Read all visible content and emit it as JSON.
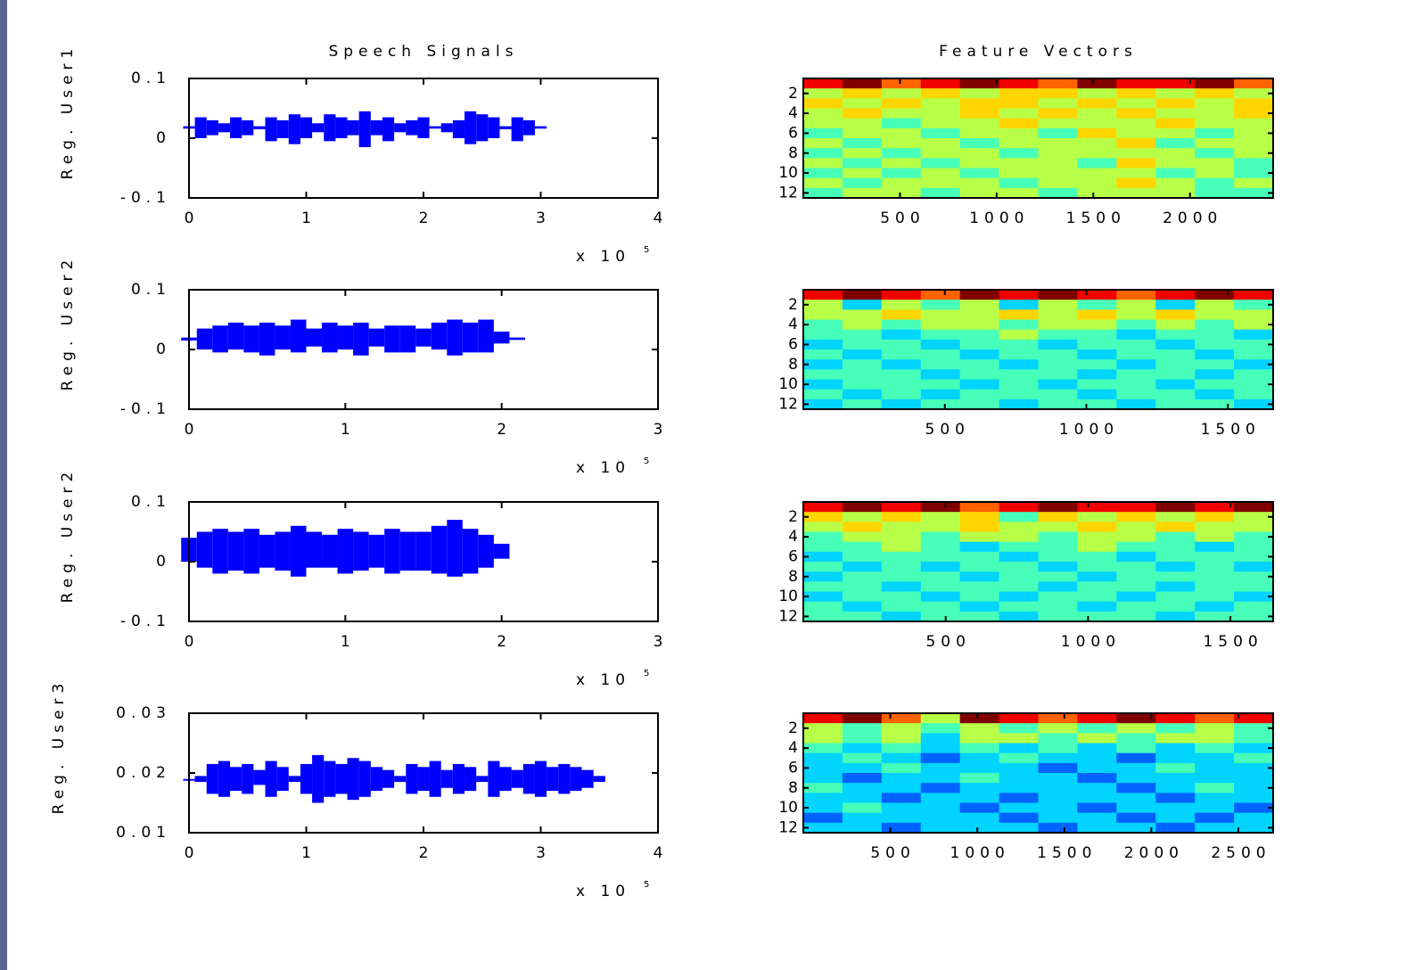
{
  "chart_data": [
    {
      "type": "range",
      "title": "Speech Signals",
      "ylabel": "Reg. User1",
      "xlabel_base": "x 10",
      "xlabel_exponent": "5",
      "color": "#0000ff",
      "xlim": [
        0,
        4
      ],
      "xticks": [
        0,
        1,
        2,
        3,
        4
      ],
      "ylim": [
        -0.1,
        0.1
      ],
      "yticks": [
        -0.1,
        0,
        0.1
      ],
      "x": [
        0,
        0.1,
        0.2,
        0.3,
        0.4,
        0.5,
        0.6,
        0.7,
        0.8,
        0.9,
        1,
        1.1,
        1.2,
        1.3,
        1.4,
        1.5,
        1.6,
        1.7,
        1.8,
        1.9,
        2,
        2.1,
        2.2,
        2.3,
        2.4,
        2.5,
        2.6,
        2.7,
        2.8,
        2.9,
        3
      ],
      "upper": [
        0.02,
        0.035,
        0.03,
        0.025,
        0.035,
        0.03,
        0.02,
        0.035,
        0.03,
        0.04,
        0.035,
        0.025,
        0.04,
        0.035,
        0.03,
        0.045,
        0.03,
        0.035,
        0.025,
        0.03,
        0.035,
        0.02,
        0.025,
        0.03,
        0.045,
        0.04,
        0.035,
        0.02,
        0.035,
        0.03,
        0.02
      ],
      "lower": [
        0.016,
        0,
        0.005,
        0.01,
        0,
        0.005,
        0.015,
        -0.005,
        0,
        -0.01,
        0,
        0.01,
        -0.005,
        0,
        0.005,
        -0.015,
        0.005,
        -0.005,
        0.01,
        0.005,
        0,
        0.016,
        0.01,
        0,
        -0.01,
        -0.005,
        0,
        0.015,
        -0.005,
        0.005,
        0.016
      ]
    },
    {
      "type": "heatmap",
      "title": "Feature Vectors",
      "colormap": "jet",
      "clim": [
        0,
        9
      ],
      "xlim": [
        0,
        2430
      ],
      "xticks": [
        500,
        1000,
        1500,
        2000
      ],
      "ylim": [
        0.5,
        12.5
      ],
      "yticks": [
        2,
        4,
        6,
        8,
        10,
        12
      ],
      "yreverse": true,
      "values": [
        [
          8,
          9,
          7,
          8,
          9,
          8,
          7,
          9,
          8,
          8,
          9,
          7
        ],
        [
          5,
          6,
          5,
          6,
          5,
          6,
          6,
          5,
          6,
          5,
          6,
          5
        ],
        [
          6,
          5,
          6,
          5,
          6,
          6,
          5,
          6,
          5,
          6,
          5,
          6
        ],
        [
          5,
          6,
          5,
          5,
          6,
          5,
          6,
          5,
          6,
          5,
          5,
          6
        ],
        [
          5,
          5,
          4,
          5,
          5,
          6,
          5,
          5,
          5,
          6,
          5,
          5
        ],
        [
          4,
          5,
          5,
          4,
          5,
          5,
          4,
          6,
          5,
          5,
          4,
          5
        ],
        [
          5,
          4,
          5,
          5,
          4,
          5,
          5,
          5,
          6,
          4,
          5,
          5
        ],
        [
          4,
          5,
          4,
          5,
          5,
          4,
          5,
          5,
          5,
          5,
          4,
          5
        ],
        [
          5,
          4,
          5,
          4,
          5,
          5,
          5,
          4,
          6,
          5,
          5,
          4
        ],
        [
          4,
          5,
          4,
          5,
          4,
          5,
          5,
          5,
          5,
          4,
          5,
          4
        ],
        [
          5,
          4,
          5,
          5,
          5,
          4,
          5,
          5,
          6,
          5,
          4,
          5
        ],
        [
          4,
          5,
          5,
          4,
          5,
          5,
          4,
          5,
          5,
          5,
          4,
          4
        ]
      ]
    },
    {
      "type": "range",
      "ylabel": "Reg. User2",
      "xlabel_base": "x 10",
      "xlabel_exponent": "5",
      "color": "#0000ff",
      "xlim": [
        0,
        3
      ],
      "xticks": [
        0,
        1,
        2,
        3
      ],
      "ylim": [
        -0.1,
        0.1
      ],
      "yticks": [
        -0.1,
        0,
        0.1
      ],
      "x": [
        0,
        0.1,
        0.2,
        0.3,
        0.4,
        0.5,
        0.6,
        0.7,
        0.8,
        0.9,
        1,
        1.1,
        1.2,
        1.3,
        1.4,
        1.5,
        1.6,
        1.7,
        1.8,
        1.9,
        2,
        2.1
      ],
      "upper": [
        0.02,
        0.035,
        0.04,
        0.045,
        0.04,
        0.045,
        0.04,
        0.05,
        0.035,
        0.045,
        0.04,
        0.045,
        0.035,
        0.04,
        0.04,
        0.035,
        0.045,
        0.05,
        0.045,
        0.05,
        0.03,
        0.02
      ],
      "lower": [
        0.015,
        0,
        -0.005,
        0,
        -0.005,
        -0.01,
        0,
        -0.005,
        0.005,
        -0.005,
        0,
        -0.01,
        0.005,
        -0.005,
        -0.005,
        0.005,
        0,
        -0.01,
        -0.005,
        -0.005,
        0.01,
        0.016
      ]
    },
    {
      "type": "heatmap",
      "colormap": "jet",
      "clim": [
        0,
        9
      ],
      "xlim": [
        0,
        1660
      ],
      "xticks": [
        500,
        1000,
        1500
      ],
      "ylim": [
        0.5,
        12.5
      ],
      "yticks": [
        2,
        4,
        6,
        8,
        10,
        12
      ],
      "yreverse": true,
      "values": [
        [
          8,
          9,
          8,
          7,
          9,
          8,
          9,
          8,
          7,
          8,
          9,
          8
        ],
        [
          5,
          3,
          5,
          4,
          5,
          3,
          5,
          4,
          5,
          3,
          5,
          4
        ],
        [
          5,
          5,
          6,
          5,
          5,
          6,
          5,
          6,
          5,
          6,
          5,
          5
        ],
        [
          4,
          5,
          4,
          5,
          5,
          4,
          5,
          5,
          4,
          5,
          4,
          5
        ],
        [
          4,
          4,
          3,
          4,
          4,
          5,
          4,
          4,
          3,
          4,
          4,
          3
        ],
        [
          3,
          4,
          4,
          3,
          4,
          4,
          3,
          4,
          4,
          3,
          4,
          4
        ],
        [
          4,
          3,
          4,
          4,
          3,
          4,
          4,
          3,
          4,
          4,
          3,
          4
        ],
        [
          3,
          4,
          3,
          4,
          4,
          3,
          4,
          4,
          3,
          4,
          4,
          3
        ],
        [
          4,
          4,
          4,
          3,
          4,
          4,
          4,
          3,
          4,
          4,
          3,
          4
        ],
        [
          3,
          4,
          4,
          4,
          3,
          4,
          3,
          4,
          4,
          3,
          4,
          4
        ],
        [
          4,
          3,
          4,
          3,
          4,
          4,
          4,
          3,
          4,
          4,
          3,
          4
        ],
        [
          3,
          4,
          3,
          4,
          4,
          3,
          4,
          4,
          3,
          4,
          4,
          3
        ]
      ]
    },
    {
      "type": "range",
      "ylabel": "Reg. User2",
      "xlabel_base": "x 10",
      "xlabel_exponent": "5",
      "color": "#0000ff",
      "xlim": [
        0,
        3
      ],
      "xticks": [
        0,
        1,
        2,
        3
      ],
      "ylim": [
        -0.1,
        0.1
      ],
      "yticks": [
        -0.1,
        0,
        0.1
      ],
      "x": [
        0,
        0.1,
        0.2,
        0.3,
        0.4,
        0.5,
        0.6,
        0.7,
        0.8,
        0.9,
        1,
        1.1,
        1.2,
        1.3,
        1.4,
        1.5,
        1.6,
        1.7,
        1.8,
        1.9,
        2
      ],
      "upper": [
        0.04,
        0.05,
        0.055,
        0.05,
        0.055,
        0.045,
        0.05,
        0.06,
        0.05,
        0.045,
        0.055,
        0.05,
        0.045,
        0.055,
        0.05,
        0.05,
        0.06,
        0.07,
        0.055,
        0.045,
        0.03
      ],
      "lower": [
        0,
        -0.01,
        -0.02,
        -0.015,
        -0.02,
        -0.01,
        -0.015,
        -0.025,
        -0.01,
        -0.01,
        -0.02,
        -0.015,
        -0.01,
        -0.02,
        -0.015,
        -0.015,
        -0.02,
        -0.025,
        -0.02,
        -0.01,
        0.005
      ]
    },
    {
      "type": "heatmap",
      "colormap": "jet",
      "clim": [
        0,
        9
      ],
      "xlim": [
        0,
        1650
      ],
      "xticks": [
        500,
        1000,
        1500
      ],
      "ylim": [
        0.5,
        12.5
      ],
      "yticks": [
        2,
        4,
        6,
        8,
        10,
        12
      ],
      "yreverse": true,
      "values": [
        [
          8,
          9,
          8,
          9,
          7,
          8,
          9,
          8,
          8,
          9,
          8,
          9
        ],
        [
          6,
          5,
          6,
          5,
          6,
          4,
          6,
          5,
          6,
          5,
          6,
          5
        ],
        [
          5,
          6,
          5,
          5,
          6,
          5,
          5,
          6,
          5,
          6,
          5,
          5
        ],
        [
          4,
          5,
          5,
          4,
          5,
          5,
          4,
          5,
          5,
          4,
          5,
          4
        ],
        [
          4,
          4,
          5,
          4,
          3,
          4,
          4,
          5,
          4,
          4,
          3,
          4
        ],
        [
          3,
          4,
          4,
          4,
          4,
          3,
          4,
          4,
          3,
          4,
          4,
          4
        ],
        [
          4,
          3,
          4,
          3,
          4,
          4,
          3,
          4,
          4,
          3,
          4,
          3
        ],
        [
          3,
          4,
          4,
          4,
          3,
          4,
          4,
          3,
          4,
          4,
          4,
          4
        ],
        [
          4,
          4,
          3,
          4,
          4,
          4,
          3,
          4,
          4,
          3,
          4,
          4
        ],
        [
          3,
          4,
          4,
          3,
          4,
          3,
          4,
          4,
          3,
          4,
          4,
          3
        ],
        [
          4,
          3,
          4,
          4,
          3,
          4,
          4,
          3,
          4,
          4,
          3,
          4
        ],
        [
          4,
          4,
          3,
          4,
          4,
          3,
          4,
          4,
          4,
          3,
          4,
          4
        ]
      ]
    },
    {
      "type": "range",
      "ylabel": "Reg. User3",
      "xlabel_base": "x 10",
      "xlabel_exponent": "5",
      "color": "#0000ff",
      "xlim": [
        0,
        4
      ],
      "xticks": [
        0,
        1,
        2,
        3,
        4
      ],
      "ylim": [
        0.01,
        0.03
      ],
      "yticks": [
        0.01,
        0.02,
        0.03
      ],
      "x": [
        0,
        0.1,
        0.2,
        0.3,
        0.4,
        0.5,
        0.6,
        0.7,
        0.8,
        0.9,
        1,
        1.1,
        1.2,
        1.3,
        1.4,
        1.5,
        1.6,
        1.7,
        1.8,
        1.9,
        2,
        2.1,
        2.2,
        2.3,
        2.4,
        2.5,
        2.6,
        2.7,
        2.8,
        2.9,
        3,
        3.1,
        3.2,
        3.3,
        3.4,
        3.5
      ],
      "upper": [
        0.019,
        0.0195,
        0.0215,
        0.022,
        0.021,
        0.0215,
        0.0205,
        0.022,
        0.021,
        0.0195,
        0.0215,
        0.023,
        0.022,
        0.0215,
        0.0225,
        0.022,
        0.021,
        0.0205,
        0.0195,
        0.0215,
        0.021,
        0.022,
        0.0205,
        0.0215,
        0.021,
        0.0195,
        0.022,
        0.021,
        0.0205,
        0.0215,
        0.022,
        0.021,
        0.0215,
        0.021,
        0.0205,
        0.0195
      ],
      "lower": [
        0.019,
        0.0185,
        0.0165,
        0.016,
        0.017,
        0.0165,
        0.018,
        0.016,
        0.017,
        0.0185,
        0.0165,
        0.015,
        0.016,
        0.0165,
        0.0155,
        0.016,
        0.017,
        0.0175,
        0.0185,
        0.0165,
        0.017,
        0.016,
        0.0175,
        0.0165,
        0.017,
        0.0185,
        0.016,
        0.017,
        0.0175,
        0.0165,
        0.016,
        0.017,
        0.0165,
        0.017,
        0.0175,
        0.0185
      ]
    },
    {
      "type": "heatmap",
      "colormap": "jet",
      "clim": [
        0,
        9
      ],
      "xlim": [
        0,
        2700
      ],
      "xticks": [
        500,
        1000,
        1500,
        2000,
        2500
      ],
      "ylim": [
        0.5,
        12.5
      ],
      "yticks": [
        2,
        4,
        6,
        8,
        10,
        12
      ],
      "yreverse": true,
      "values": [
        [
          8,
          9,
          7,
          5,
          9,
          8,
          7,
          8,
          9,
          8,
          7,
          8
        ],
        [
          5,
          4,
          5,
          4,
          5,
          4,
          5,
          4,
          5,
          4,
          5,
          4
        ],
        [
          5,
          4,
          5,
          3,
          5,
          5,
          4,
          5,
          4,
          5,
          5,
          4
        ],
        [
          4,
          3,
          4,
          3,
          4,
          3,
          4,
          3,
          4,
          3,
          4,
          3
        ],
        [
          3,
          4,
          3,
          2,
          3,
          4,
          3,
          3,
          2,
          3,
          3,
          4
        ],
        [
          3,
          3,
          4,
          3,
          3,
          3,
          2,
          3,
          3,
          4,
          3,
          3
        ],
        [
          3,
          2,
          3,
          3,
          4,
          3,
          3,
          2,
          3,
          3,
          3,
          3
        ],
        [
          4,
          3,
          3,
          2,
          3,
          3,
          3,
          3,
          2,
          3,
          4,
          3
        ],
        [
          3,
          3,
          2,
          3,
          3,
          2,
          3,
          3,
          3,
          2,
          3,
          3
        ],
        [
          3,
          4,
          3,
          3,
          2,
          3,
          3,
          2,
          3,
          3,
          3,
          2
        ],
        [
          2,
          3,
          3,
          3,
          3,
          2,
          3,
          3,
          2,
          3,
          2,
          3
        ],
        [
          3,
          3,
          2,
          3,
          3,
          3,
          2,
          3,
          3,
          2,
          3,
          3
        ]
      ]
    }
  ]
}
